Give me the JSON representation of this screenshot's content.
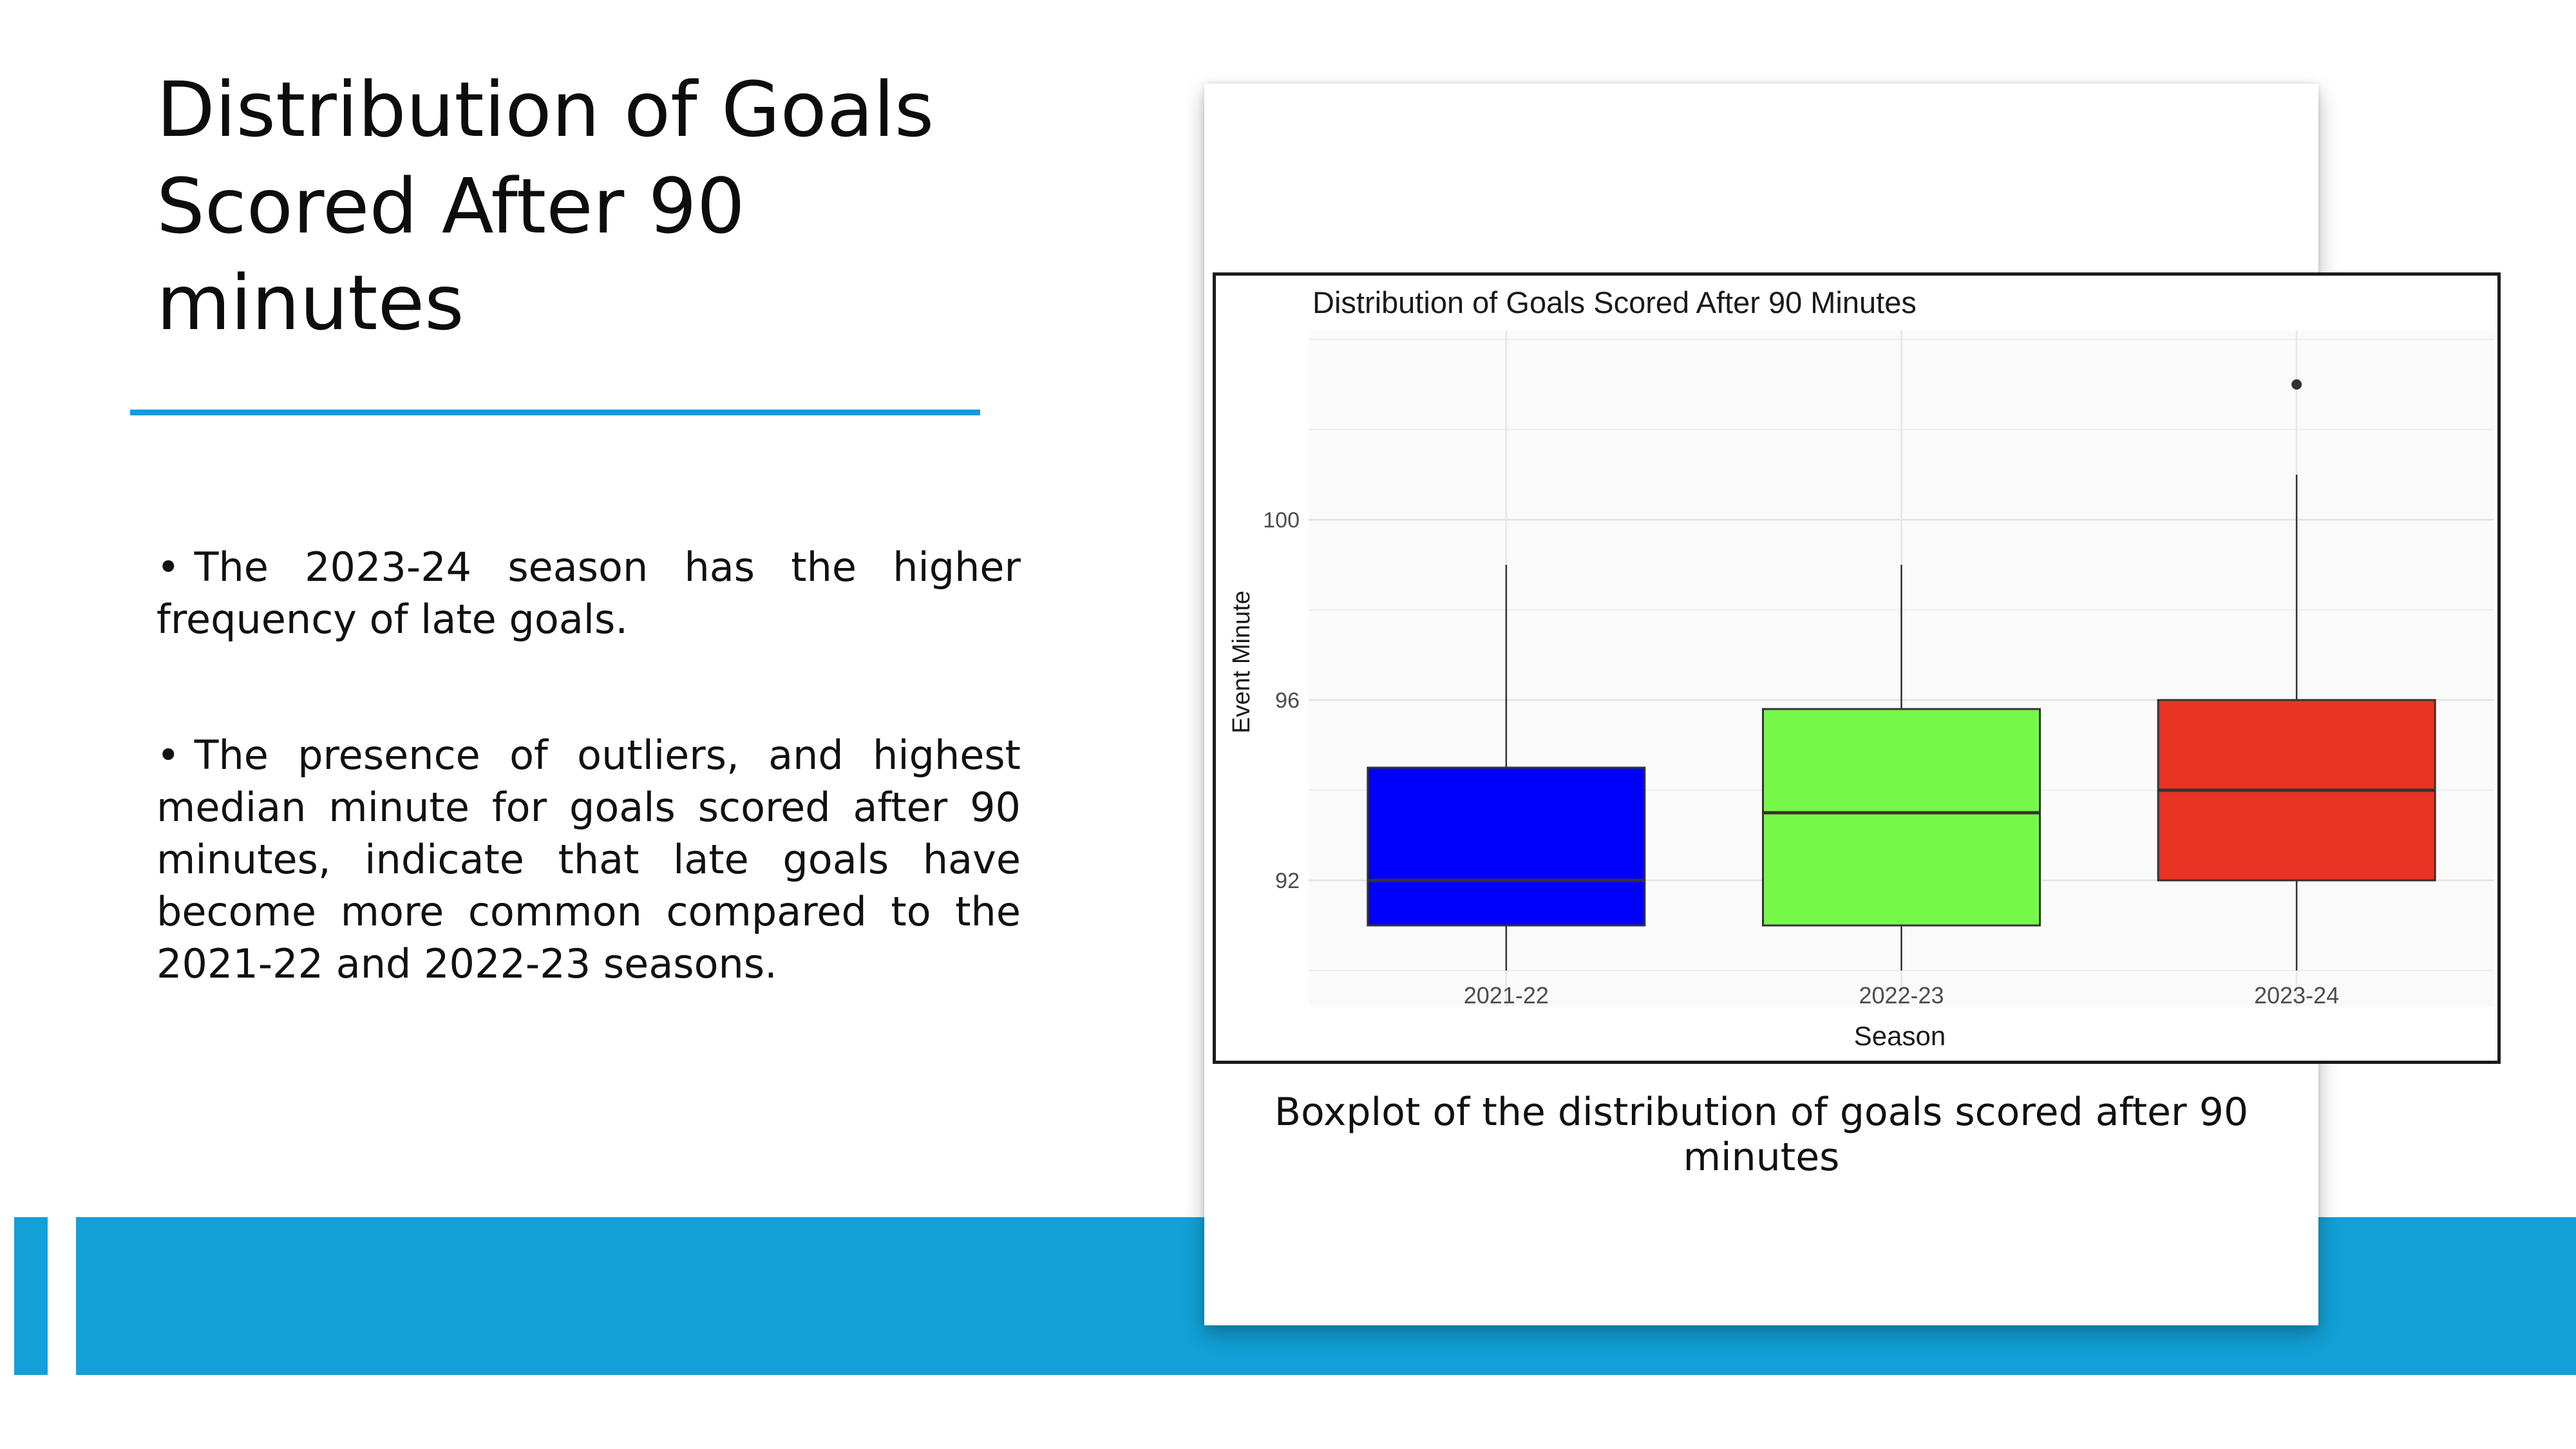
{
  "slide": {
    "title": "Distribution of Goals Scored After 90 minutes",
    "bullets": [
      "The 2023-24 season has the higher frequency of late goals.",
      "The presence of outliers, and highest median minute for goals scored after 90 minutes, indicate that late goals have become more common compared to the 2021-22 and 2022-23 seasons."
    ],
    "caption": "Boxplot of the distribution of goals scored after 90 minutes",
    "accent_color": "#1a9ad6",
    "band_color": "#12a0d6"
  },
  "chart_data": {
    "type": "boxplot",
    "title": "Distribution of Goals Scored After 90 Minutes",
    "xlabel": "Season",
    "ylabel": "Event Minute",
    "categories": [
      "2021-22",
      "2022-23",
      "2023-24"
    ],
    "yticks": [
      92,
      96,
      100
    ],
    "ylim": [
      89.2,
      104.2
    ],
    "grid": true,
    "series": [
      {
        "category": "2021-22",
        "min": 90,
        "q1": 91,
        "median": 92,
        "q3": 94.5,
        "max": 99,
        "outliers": [],
        "color": "#0000ff"
      },
      {
        "category": "2022-23",
        "min": 90,
        "q1": 91,
        "median": 93.5,
        "q3": 95.8,
        "max": 99,
        "outliers": [],
        "color": "#76f84a"
      },
      {
        "category": "2023-24",
        "min": 90,
        "q1": 92,
        "median": 94,
        "q3": 96,
        "max": 101,
        "outliers": [
          103
        ],
        "color": "#e93323"
      }
    ]
  }
}
